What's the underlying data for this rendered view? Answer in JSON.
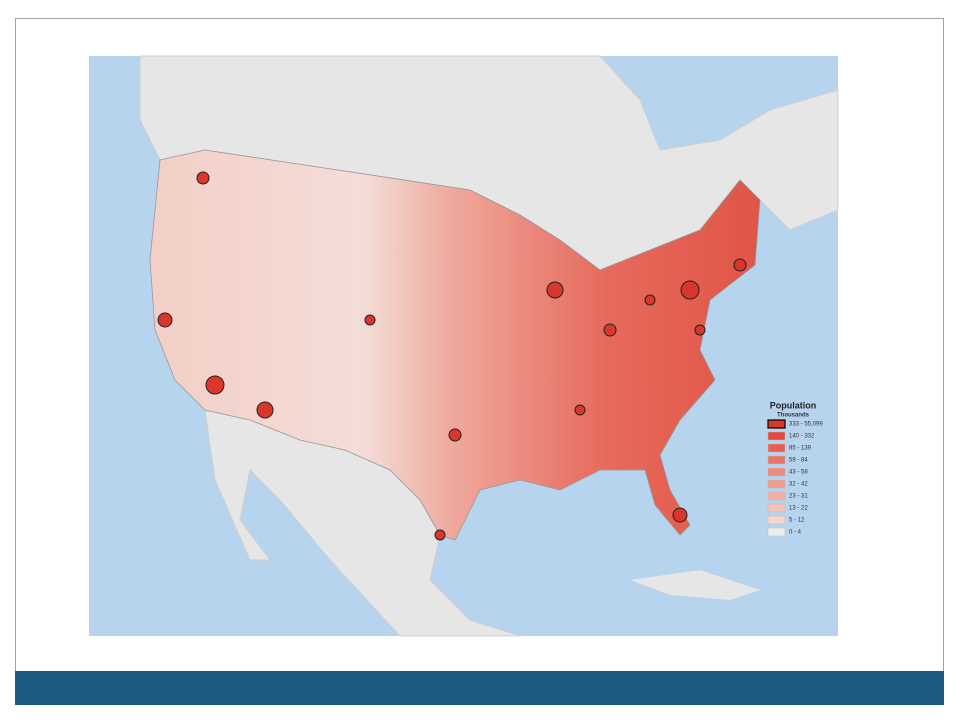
{
  "map": {
    "legend": {
      "title": "Population",
      "subtitle": "Thousands",
      "classes": [
        {
          "label": "333 - 55,099",
          "color": "#d9362c"
        },
        {
          "label": "140 - 332",
          "color": "#e4483c"
        },
        {
          "label": "85 - 139",
          "color": "#e85e50"
        },
        {
          "label": "59 - 84",
          "color": "#eb7466"
        },
        {
          "label": "43 - 58",
          "color": "#ee8a7c"
        },
        {
          "label": "32 - 42",
          "color": "#f09d90"
        },
        {
          "label": "23 - 31",
          "color": "#f2afa4"
        },
        {
          "label": "13 - 22",
          "color": "#f4c2b9"
        },
        {
          "label": "5 - 12",
          "color": "#f6d5cf"
        },
        {
          "label": "0 - 4",
          "color": "#ececec"
        }
      ]
    }
  }
}
